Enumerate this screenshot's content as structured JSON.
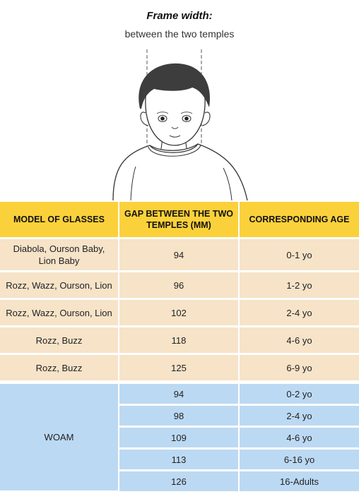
{
  "header": {
    "title": "Frame width:",
    "subtitle": "between the two temples"
  },
  "table": {
    "headers": [
      "MODEL OF GLASSES",
      "GAP BETWEEN THE TWO TEMPLES (MM)",
      "CORRESPONDING AGE"
    ],
    "rows": [
      {
        "model": "Diabola, Ourson Baby, Lion Baby",
        "gap": "94",
        "age": "0-1 yo"
      },
      {
        "model": "Rozz, Wazz, Ourson, Lion",
        "gap": "96",
        "age": "1-2 yo"
      },
      {
        "model": "Rozz, Wazz, Ourson, Lion",
        "gap": "102",
        "age": "2-4 yo"
      },
      {
        "model": "Rozz, Buzz",
        "gap": "118",
        "age": "4-6 yo"
      },
      {
        "model": "Rozz, Buzz",
        "gap": "125",
        "age": "6-9 yo"
      }
    ]
  },
  "woam": {
    "model": "WOAM",
    "rows": [
      {
        "gap": "94",
        "age": "0-2 yo"
      },
      {
        "gap": "98",
        "age": "2-4 yo"
      },
      {
        "gap": "109",
        "age": "4-6 yo"
      },
      {
        "gap": "113",
        "age": "6-16 yo"
      },
      {
        "gap": "126",
        "age": "16-Adults"
      }
    ]
  },
  "colors": {
    "header_bg": "#fbd13b",
    "row_bg": "#f6e3c8",
    "woam_bg": "#bcd9f3"
  }
}
